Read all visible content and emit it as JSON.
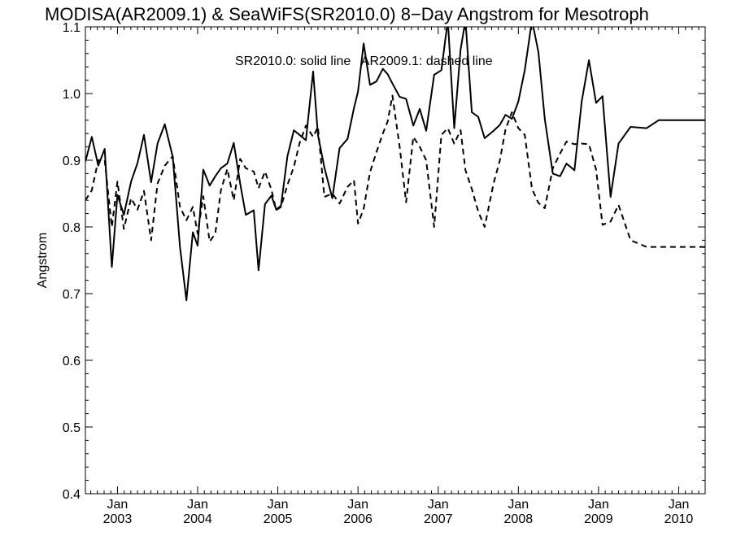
{
  "chart_data": {
    "type": "line",
    "title": "MODISA(AR2009.1) & SeaWiFS(SR2010.0) 8−Day Angstrom for Mesotroph",
    "xlabel": "",
    "ylabel": "Angstrom",
    "annotation": "SR2010.0: solid line   AR2009.1: dashed line",
    "xlim": [
      2002.6,
      2010.33
    ],
    "ylim": [
      0.4,
      1.1
    ],
    "yticks": [
      0.4,
      0.5,
      0.6,
      0.7,
      0.8,
      0.9,
      1.0,
      1.1
    ],
    "ytick_labels": [
      "0.4",
      "0.5",
      "0.6",
      "0.7",
      "0.8",
      "0.9",
      "1.0",
      "1.1"
    ],
    "xticks": [
      2003,
      2004,
      2005,
      2006,
      2007,
      2008,
      2009,
      2010
    ],
    "xtick_month_labels": [
      "Jan",
      "Jan",
      "Jan",
      "Jan",
      "Jan",
      "Jan",
      "Jan",
      "Jan"
    ],
    "xtick_year_labels": [
      "2003",
      "2004",
      "2005",
      "2006",
      "2007",
      "2008",
      "2009",
      "2010"
    ],
    "grid": false,
    "series": [
      {
        "name": "SR2010.0",
        "style": "solid",
        "color": "#000000",
        "x": [
          2002.6,
          2002.68,
          2002.76,
          2002.84,
          2002.93,
          2003.0,
          2003.08,
          2003.17,
          2003.25,
          2003.33,
          2003.42,
          2003.5,
          2003.59,
          2003.69,
          2003.78,
          2003.86,
          2003.94,
          2004.0,
          2004.07,
          2004.15,
          2004.22,
          2004.29,
          2004.37,
          2004.45,
          2004.53,
          2004.6,
          2004.7,
          2004.76,
          2004.84,
          2004.92,
          2004.98,
          2005.04,
          2005.12,
          2005.2,
          2005.27,
          2005.35,
          2005.44,
          2005.5,
          2005.58,
          2005.68,
          2005.77,
          2005.87,
          2005.95,
          2006.0,
          2006.07,
          2006.15,
          2006.23,
          2006.31,
          2006.37,
          2006.43,
          2006.52,
          2006.6,
          2006.69,
          2006.77,
          2006.85,
          2006.95,
          2007.04,
          2007.12,
          2007.2,
          2007.28,
          2007.34,
          2007.42,
          2007.5,
          2007.58,
          2007.69,
          2007.77,
          2007.84,
          2007.92,
          2008.0,
          2008.08,
          2008.17,
          2008.25,
          2008.33,
          2008.43,
          2008.52,
          2008.6,
          2008.7,
          2008.79,
          2008.88,
          2008.97,
          2009.05,
          2009.15,
          2009.25,
          2009.4,
          2009.6,
          2009.75,
          2009.88,
          2009.94,
          2010.0,
          2010.08,
          2010.15,
          2010.23,
          2010.33
        ],
        "y": [
          0.898,
          0.935,
          0.892,
          0.917,
          0.74,
          0.848,
          0.818,
          0.868,
          0.896,
          0.938,
          0.867,
          0.925,
          0.954,
          0.905,
          0.77,
          0.69,
          0.792,
          0.772,
          0.886,
          0.862,
          0.876,
          0.888,
          0.895,
          0.926,
          0.865,
          0.818,
          0.825,
          0.735,
          0.834,
          0.847,
          0.826,
          0.832,
          0.906,
          0.945,
          0.938,
          0.93,
          1.033,
          0.938,
          0.889,
          0.843,
          0.918,
          0.932,
          0.978,
          1.003,
          1.075,
          1.013,
          1.018,
          1.037,
          1.029,
          1.015,
          0.995,
          0.992,
          0.952,
          0.977,
          0.944,
          1.028,
          1.035,
          1.11,
          0.948,
          1.066,
          1.11,
          0.972,
          0.965,
          0.933,
          0.944,
          0.953,
          0.968,
          0.962,
          0.988,
          1.035,
          1.11,
          1.062,
          0.962,
          0.88,
          0.876,
          0.895,
          0.885,
          0.988,
          1.05,
          0.986,
          0.996,
          0.845,
          0.925,
          0.95,
          0.948,
          0.96,
          0.96,
          0.96,
          0.96,
          0.96,
          0.96,
          0.96,
          0.96
        ]
      },
      {
        "name": "AR2009.1",
        "style": "dashed",
        "color": "#000000",
        "x": [
          2002.6,
          2002.68,
          2002.76,
          2002.84,
          2002.93,
          2003.0,
          2003.08,
          2003.17,
          2003.25,
          2003.33,
          2003.42,
          2003.5,
          2003.59,
          2003.69,
          2003.78,
          2003.86,
          2003.94,
          2004.0,
          2004.07,
          2004.15,
          2004.22,
          2004.29,
          2004.37,
          2004.45,
          2004.53,
          2004.6,
          2004.7,
          2004.76,
          2004.84,
          2004.92,
          2004.98,
          2005.04,
          2005.12,
          2005.2,
          2005.27,
          2005.35,
          2005.44,
          2005.5,
          2005.58,
          2005.68,
          2005.77,
          2005.87,
          2005.95,
          2006.0,
          2006.07,
          2006.15,
          2006.23,
          2006.31,
          2006.37,
          2006.43,
          2006.52,
          2006.6,
          2006.69,
          2006.77,
          2006.85,
          2006.95,
          2007.04,
          2007.12,
          2007.2,
          2007.28,
          2007.34,
          2007.42,
          2007.5,
          2007.58,
          2007.69,
          2007.77,
          2007.84,
          2007.92,
          2008.0,
          2008.08,
          2008.17,
          2008.25,
          2008.33,
          2008.43,
          2008.52,
          2008.6,
          2008.7,
          2008.79,
          2008.88,
          2008.97,
          2009.05,
          2009.15,
          2009.25,
          2009.4,
          2009.6,
          2009.75,
          2009.88,
          2009.94,
          2010.0,
          2010.08,
          2010.15,
          2010.23,
          2010.33
        ],
        "y": [
          0.84,
          0.855,
          0.9,
          0.9,
          0.8,
          0.868,
          0.797,
          0.843,
          0.826,
          0.854,
          0.78,
          0.865,
          0.892,
          0.906,
          0.83,
          0.81,
          0.83,
          0.79,
          0.846,
          0.778,
          0.79,
          0.855,
          0.887,
          0.84,
          0.902,
          0.888,
          0.883,
          0.858,
          0.883,
          0.856,
          0.825,
          0.83,
          0.863,
          0.89,
          0.925,
          0.952,
          0.935,
          0.95,
          0.845,
          0.85,
          0.835,
          0.86,
          0.87,
          0.805,
          0.827,
          0.882,
          0.912,
          0.94,
          0.958,
          0.997,
          0.92,
          0.837,
          0.935,
          0.92,
          0.9,
          0.8,
          0.938,
          0.948,
          0.925,
          0.945,
          0.885,
          0.857,
          0.823,
          0.8,
          0.865,
          0.9,
          0.946,
          0.972,
          0.948,
          0.938,
          0.857,
          0.836,
          0.828,
          0.888,
          0.91,
          0.928,
          0.924,
          0.925,
          0.924,
          0.886,
          0.803,
          0.808,
          0.833,
          0.78,
          0.77,
          0.77,
          0.77,
          0.77,
          0.77,
          0.77,
          0.77,
          0.77,
          0.77
        ]
      }
    ]
  }
}
